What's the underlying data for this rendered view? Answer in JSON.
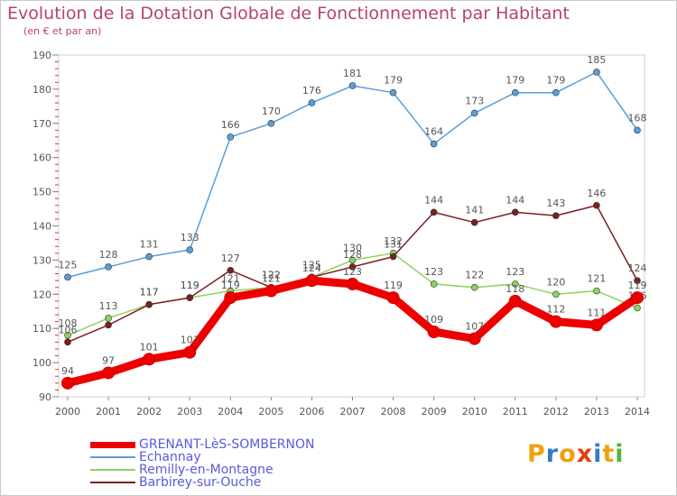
{
  "title": "Evolution de la Dotation Globale de Fonctionnement par Habitant",
  "subtitle": "(en € et par an)",
  "logo": {
    "letters": [
      "P",
      "r",
      "o",
      "x",
      "i",
      "t",
      "i"
    ],
    "colors": [
      "#f0a010",
      "#3a7ac8",
      "#f0a010",
      "#e04010",
      "#3a7ac8",
      "#f0a010",
      "#58b040"
    ]
  },
  "chart_data": {
    "type": "line",
    "title": "Evolution de la Dotation Globale de Fonctionnement par Habitant",
    "subtitle": "(en € et par an)",
    "xlabel": "",
    "ylabel": "",
    "ylim": [
      90,
      190
    ],
    "yticks": [
      "90",
      "100",
      "110",
      "120",
      "130",
      "140",
      "150",
      "160",
      "170",
      "180",
      "190"
    ],
    "x": [
      "2000",
      "2001",
      "2002",
      "2003",
      "2004",
      "2005",
      "2006",
      "2007",
      "2008",
      "2009",
      "2010",
      "2011",
      "2012",
      "2013",
      "2014"
    ],
    "grid": false,
    "legend": "bottom-left",
    "series": [
      {
        "name": "Echannay",
        "color": "#5a9ed6",
        "values": [
          125,
          128,
          131,
          133,
          166,
          170,
          176,
          181,
          179,
          164,
          173,
          179,
          179,
          185,
          168
        ],
        "labels": [
          "125",
          "128",
          "131",
          "133",
          "166",
          "170",
          "176",
          "181",
          "179",
          "164",
          "173",
          "179",
          "179",
          "185",
          "168"
        ]
      },
      {
        "name": "Remilly-en-Montagne",
        "color": "#8ed35a",
        "values": [
          108,
          113,
          117,
          119,
          121,
          122,
          125,
          130,
          132,
          123,
          122,
          123,
          120,
          121,
          116
        ],
        "labels": [
          "108",
          "113",
          "117",
          "119",
          "121",
          "122",
          "125",
          "130",
          "132",
          "123",
          "122",
          "123",
          "120",
          "121",
          "116"
        ]
      },
      {
        "name": "Barbirey-sur-Ouche",
        "color": "#7a2020",
        "values": [
          106,
          111,
          117,
          119,
          127,
          122,
          125,
          128,
          131,
          144,
          141,
          144,
          143,
          146,
          124
        ],
        "labels": [
          "106",
          "",
          "117",
          "119",
          "127",
          "122",
          "",
          "128",
          "131",
          "144",
          "141",
          "144",
          "143",
          "146",
          "124"
        ]
      },
      {
        "name": "GRENANT-LèS-SOMBERNON",
        "color": "#ee0000",
        "values": [
          94,
          97,
          101,
          103,
          119,
          121,
          124,
          123,
          119,
          109,
          107,
          118,
          112,
          111,
          119
        ],
        "labels": [
          "94",
          "97",
          "101",
          "103",
          "119",
          "121",
          "124",
          "123",
          "119",
          "109",
          "107",
          "118",
          "112",
          "111",
          "119"
        ]
      }
    ]
  },
  "legend_items": [
    {
      "name": "GRENANT-LèS-SOMBERNON",
      "color": "#ee0000",
      "thickness": 7
    },
    {
      "name": "Echannay",
      "color": "#5a9ed6",
      "thickness": 2
    },
    {
      "name": "Remilly-en-Montagne",
      "color": "#8ed35a",
      "thickness": 2
    },
    {
      "name": "Barbirey-sur-Ouche",
      "color": "#7a2020",
      "thickness": 2
    }
  ]
}
